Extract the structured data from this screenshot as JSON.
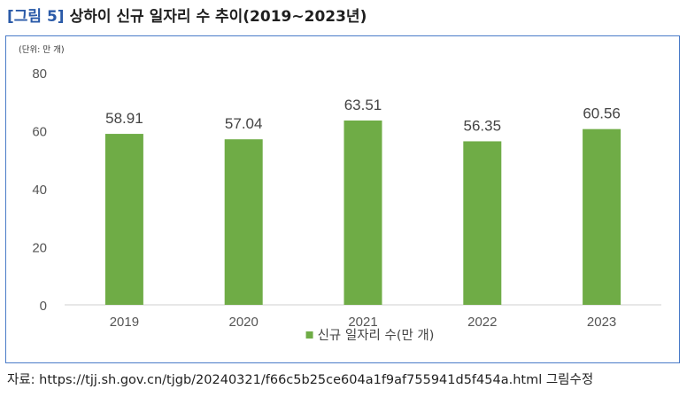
{
  "figure": {
    "tag": "[그림 5]",
    "title": "상하이 신규 일자리 수 추이(2019~2023년)"
  },
  "source": "자료: https://tjj.sh.gov.cn/tjgb/20240321/f66c5b25ce604a1f9af755941d5f454a.html 그림수정",
  "chart_data": {
    "type": "bar",
    "unit_label": "(단위: 만 개)",
    "categories": [
      "2019",
      "2020",
      "2021",
      "2022",
      "2023"
    ],
    "series": [
      {
        "name": "신규 일자리 수(만 개)",
        "values": [
          58.91,
          57.04,
          63.51,
          56.35,
          60.56
        ],
        "color": "#6fac46"
      }
    ],
    "data_labels": [
      "58.91",
      "57.04",
      "63.51",
      "56.35",
      "60.56"
    ],
    "ylim": [
      0,
      80
    ],
    "yticks": [
      0,
      20,
      40,
      60,
      80
    ],
    "grid": false,
    "legend_position": "bottom"
  }
}
